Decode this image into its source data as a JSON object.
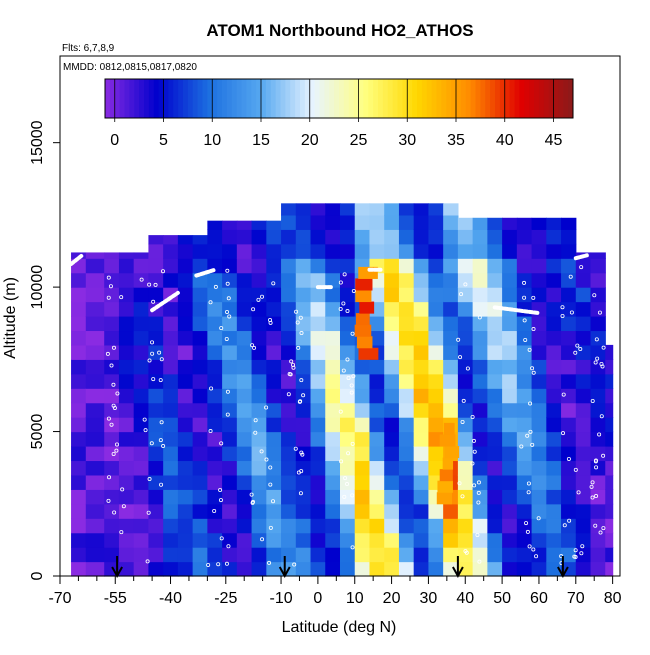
{
  "chart_data": {
    "type": "heatmap",
    "title": "ATOM1 Northbound HO2_ATHOS",
    "annotations": [
      "Flts: 6,7,8,9",
      "MMDD: 0812,0815,0817,0820"
    ],
    "xlabel": "Latitude (deg N)",
    "ylabel": "Altitude (m)",
    "xlim": [
      -70,
      82
    ],
    "ylim": [
      0,
      18000
    ],
    "x_ticks_major": [
      -70,
      -55,
      -40,
      -25,
      -10,
      0,
      10,
      20,
      30,
      40,
      50,
      60,
      70,
      80
    ],
    "x_tick_labels": [
      "-70",
      "-55",
      "-40",
      "-25",
      "-10",
      "0",
      "10",
      "20",
      "30",
      "40",
      "50",
      "60",
      "70",
      "80"
    ],
    "x_ticks_minor": [
      -65,
      -60,
      -50,
      -45,
      -35,
      -30,
      -20,
      -15,
      -5,
      5,
      15,
      25,
      35,
      45,
      55,
      65,
      75
    ],
    "y_ticks": [
      0,
      5000,
      10000,
      15000
    ],
    "y_tick_labels": [
      "0",
      "5000",
      "10000",
      "15000"
    ],
    "colorbar": {
      "min": -1,
      "max": 47,
      "ticks": [
        0,
        5,
        10,
        15,
        20,
        25,
        30,
        35,
        40,
        45
      ],
      "tick_labels": [
        "0",
        "5",
        "10",
        "15",
        "20",
        "25",
        "30",
        "35",
        "40",
        "45"
      ],
      "colors": [
        "#8a2be2",
        "#0000cd",
        "#1c6fe0",
        "#56a8f0",
        "#e8f4ff",
        "#ffff80",
        "#ffd700",
        "#ff8c00",
        "#e00000",
        "#8b1a1a"
      ]
    },
    "arrow_latitudes": [
      -54.5,
      -9,
      38,
      66.5
    ],
    "columns": [
      {
        "x0": -67,
        "x1": -63,
        "top": 11200,
        "v": 1
      },
      {
        "x0": -63,
        "x1": -58,
        "top": 11200,
        "v": 1
      },
      {
        "x0": -58,
        "x1": -54,
        "top": 11200,
        "v": 2
      },
      {
        "x0": -54,
        "x1": -50,
        "top": 11200,
        "v": 3
      },
      {
        "x0": -50,
        "x1": -46,
        "top": 11200,
        "v": 4
      },
      {
        "x0": -46,
        "x1": -42,
        "top": 11800,
        "v": 6
      },
      {
        "x0": -42,
        "x1": -38,
        "top": 11800,
        "v": 7
      },
      {
        "x0": -38,
        "x1": -34,
        "top": 11800,
        "v": 7
      },
      {
        "x0": -34,
        "x1": -30,
        "top": 11800,
        "v": 8
      },
      {
        "x0": -30,
        "x1": -26,
        "top": 12300,
        "v": 9
      },
      {
        "x0": -26,
        "x1": -22,
        "top": 12300,
        "v": 10
      },
      {
        "x0": -22,
        "x1": -18,
        "top": 12300,
        "v": 11
      },
      {
        "x0": -18,
        "x1": -14,
        "top": 12300,
        "v": 12
      },
      {
        "x0": -14,
        "x1": -10,
        "top": 12300,
        "v": 11
      },
      {
        "x0": -10,
        "x1": -6,
        "top": 12900,
        "v": 10
      },
      {
        "x0": -6,
        "x1": -2,
        "top": 12900,
        "v": 13
      },
      {
        "x0": -2,
        "x1": 2,
        "top": 12900,
        "v": 16
      },
      {
        "x0": 2,
        "x1": 6,
        "top": 12900,
        "v": 19
      },
      {
        "x0": 6,
        "x1": 10,
        "top": 12900,
        "v": 21
      },
      {
        "x0": 10,
        "x1": 14,
        "top": 12900,
        "v": 27
      },
      {
        "x0": 14,
        "x1": 18,
        "top": 12900,
        "v": 24
      },
      {
        "x0": 18,
        "x1": 22,
        "top": 12900,
        "v": 25
      },
      {
        "x0": 22,
        "x1": 26,
        "top": 12900,
        "v": 24
      },
      {
        "x0": 26,
        "x1": 30,
        "top": 12900,
        "v": 26
      },
      {
        "x0": 30,
        "x1": 34,
        "top": 12900,
        "v": 28
      },
      {
        "x0": 34,
        "x1": 38,
        "top": 12900,
        "v": 31
      },
      {
        "x0": 38,
        "x1": 42,
        "top": 12400,
        "v": 24
      },
      {
        "x0": 42,
        "x1": 46,
        "top": 12400,
        "v": 19
      },
      {
        "x0": 46,
        "x1": 50,
        "top": 12400,
        "v": 16
      },
      {
        "x0": 50,
        "x1": 54,
        "top": 12400,
        "v": 14
      },
      {
        "x0": 54,
        "x1": 58,
        "top": 12400,
        "v": 12
      },
      {
        "x0": 58,
        "x1": 62,
        "top": 12400,
        "v": 10
      },
      {
        "x0": 62,
        "x1": 66,
        "top": 12400,
        "v": 8
      },
      {
        "x0": 66,
        "x1": 70,
        "top": 12400,
        "v": 7
      },
      {
        "x0": 70,
        "x1": 74,
        "top": 11200,
        "v": 5
      },
      {
        "x0": 74,
        "x1": 78,
        "top": 11200,
        "v": 4
      },
      {
        "x0": 78,
        "x1": 80,
        "top": 8000,
        "v": 3
      }
    ],
    "hotspots": [
      {
        "x0": 9,
        "x1": 16,
        "y0": 7500,
        "y1": 10500,
        "v": 41
      },
      {
        "x0": 33,
        "x1": 38,
        "y0": 2500,
        "y1": 5200,
        "v": 38
      }
    ],
    "flight_track_segments": [
      {
        "lat": [
          -67,
          -64
        ],
        "alt": [
          10800,
          11100
        ]
      },
      {
        "lat": [
          -45,
          -38
        ],
        "alt": [
          9200,
          9800
        ]
      },
      {
        "lat": [
          -33,
          -28
        ],
        "alt": [
          10400,
          10600
        ]
      },
      {
        "lat": [
          0,
          4
        ],
        "alt": [
          10000,
          10000
        ]
      },
      {
        "lat": [
          14,
          17
        ],
        "alt": [
          10600,
          10600
        ]
      },
      {
        "lat": [
          48,
          60
        ],
        "alt": [
          9300,
          9100
        ]
      },
      {
        "lat": [
          70,
          73
        ],
        "alt": [
          11000,
          11100
        ]
      }
    ]
  }
}
